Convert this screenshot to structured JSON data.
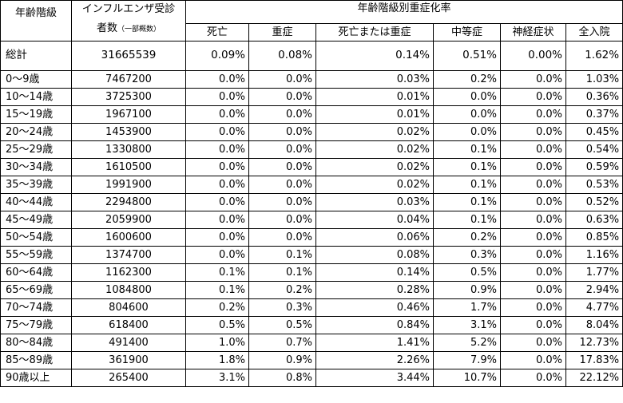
{
  "header": {
    "age_group": "年齢階級",
    "patients_line1": "インフルエンザ受診",
    "patients_line2": "者数",
    "patients_note": "（一部概数）",
    "rate_title": "年齢階級別重症化率",
    "cols": [
      "死亡",
      "重症",
      "死亡または重症",
      "中等症",
      "神経症状",
      "全入院"
    ]
  },
  "total": {
    "label": "総計",
    "count": "31665539",
    "rates": [
      "0.09%",
      "0.08%",
      "0.14%",
      "0.51%",
      "0.00%",
      "1.62%"
    ]
  },
  "rows": [
    {
      "age": "0～9歳",
      "count": "7467200",
      "rates": [
        "0.0%",
        "0.0%",
        "0.03%",
        "0.2%",
        "0.0%",
        "1.03%"
      ]
    },
    {
      "age": "10～14歳",
      "count": "3725300",
      "rates": [
        "0.0%",
        "0.0%",
        "0.01%",
        "0.0%",
        "0.0%",
        "0.36%"
      ]
    },
    {
      "age": "15～19歳",
      "count": "1967100",
      "rates": [
        "0.0%",
        "0.0%",
        "0.01%",
        "0.0%",
        "0.0%",
        "0.37%"
      ]
    },
    {
      "age": "20～24歳",
      "count": "1453900",
      "rates": [
        "0.0%",
        "0.0%",
        "0.02%",
        "0.0%",
        "0.0%",
        "0.45%"
      ]
    },
    {
      "age": "25～29歳",
      "count": "1330800",
      "rates": [
        "0.0%",
        "0.0%",
        "0.02%",
        "0.1%",
        "0.0%",
        "0.54%"
      ]
    },
    {
      "age": "30～34歳",
      "count": "1610500",
      "rates": [
        "0.0%",
        "0.0%",
        "0.02%",
        "0.1%",
        "0.0%",
        "0.59%"
      ]
    },
    {
      "age": "35～39歳",
      "count": "1991900",
      "rates": [
        "0.0%",
        "0.0%",
        "0.02%",
        "0.1%",
        "0.0%",
        "0.53%"
      ]
    },
    {
      "age": "40～44歳",
      "count": "2294800",
      "rates": [
        "0.0%",
        "0.0%",
        "0.03%",
        "0.1%",
        "0.0%",
        "0.52%"
      ]
    },
    {
      "age": "45～49歳",
      "count": "2059900",
      "rates": [
        "0.0%",
        "0.0%",
        "0.04%",
        "0.1%",
        "0.0%",
        "0.63%"
      ]
    },
    {
      "age": "50～54歳",
      "count": "1600600",
      "rates": [
        "0.0%",
        "0.0%",
        "0.06%",
        "0.2%",
        "0.0%",
        "0.85%"
      ]
    },
    {
      "age": "55～59歳",
      "count": "1374700",
      "rates": [
        "0.0%",
        "0.1%",
        "0.08%",
        "0.3%",
        "0.0%",
        "1.16%"
      ]
    },
    {
      "age": "60～64歳",
      "count": "1162300",
      "rates": [
        "0.1%",
        "0.1%",
        "0.14%",
        "0.5%",
        "0.0%",
        "1.77%"
      ]
    },
    {
      "age": "65～69歳",
      "count": "1084800",
      "rates": [
        "0.1%",
        "0.2%",
        "0.28%",
        "0.9%",
        "0.0%",
        "2.94%"
      ]
    },
    {
      "age": "70～74歳",
      "count": "804600",
      "rates": [
        "0.2%",
        "0.3%",
        "0.46%",
        "1.7%",
        "0.0%",
        "4.77%"
      ]
    },
    {
      "age": "75～79歳",
      "count": "618400",
      "rates": [
        "0.5%",
        "0.5%",
        "0.84%",
        "3.1%",
        "0.0%",
        "8.04%"
      ]
    },
    {
      "age": "80～84歳",
      "count": "491400",
      "rates": [
        "1.0%",
        "0.7%",
        "1.41%",
        "5.2%",
        "0.0%",
        "12.73%"
      ]
    },
    {
      "age": "85～89歳",
      "count": "361900",
      "rates": [
        "1.8%",
        "0.9%",
        "2.26%",
        "7.9%",
        "0.0%",
        "17.83%"
      ]
    },
    {
      "age": "90歳以上",
      "count": "265400",
      "rates": [
        "3.1%",
        "0.8%",
        "3.44%",
        "10.7%",
        "0.0%",
        "22.12%"
      ]
    }
  ]
}
